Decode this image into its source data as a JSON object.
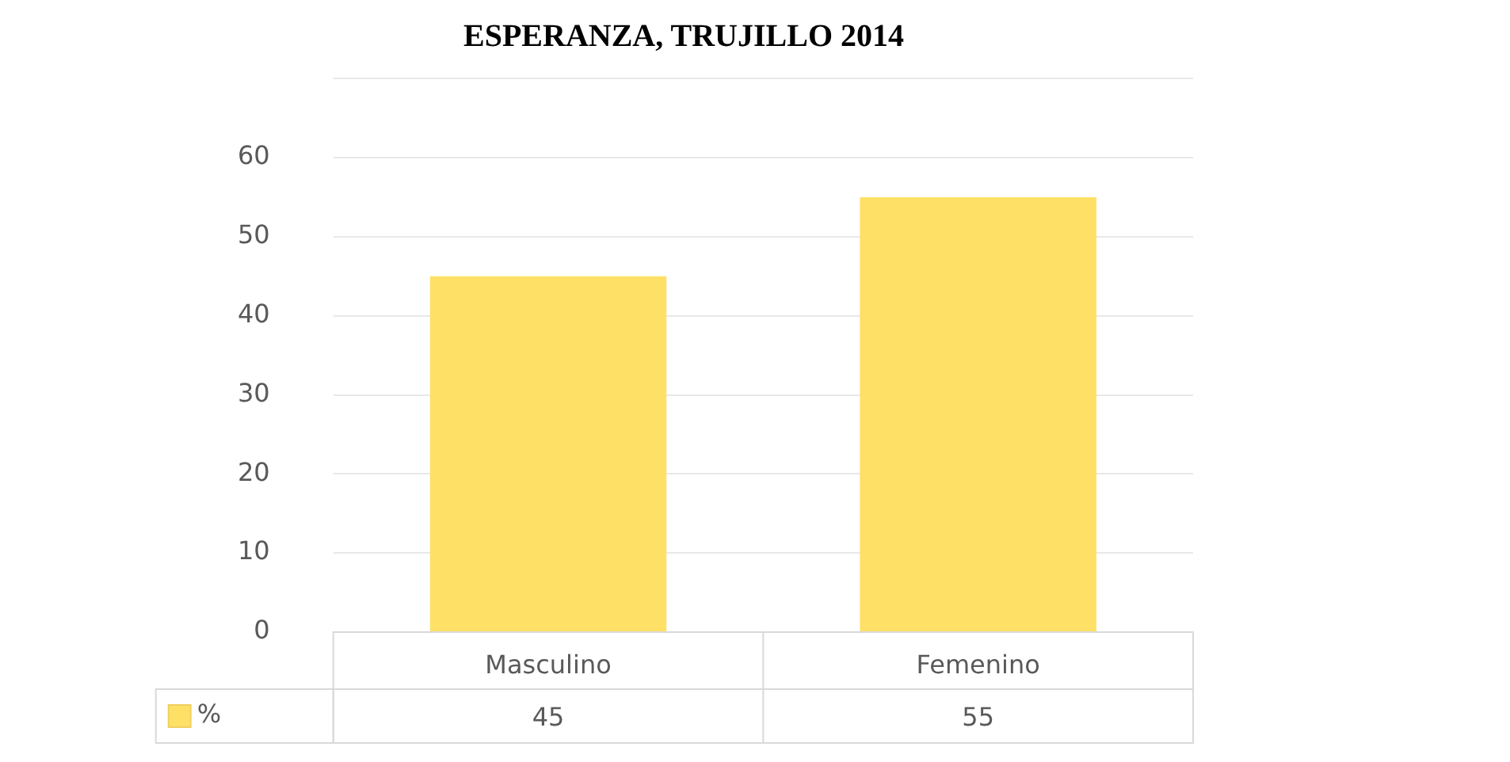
{
  "chart_data": {
    "type": "bar",
    "title": "ESPERANZA, TRUJILLO 2014",
    "categories": [
      "Masculino",
      "Femenino"
    ],
    "series": [
      {
        "name": "%",
        "color": "#ffe066",
        "values": [
          45,
          55
        ]
      }
    ],
    "ylim": [
      0,
      70
    ],
    "yticks": [
      0,
      10,
      20,
      30,
      40,
      50,
      60,
      {
        "value": 70,
        "label": null
      }
    ],
    "grid": "y",
    "legend": "bottom",
    "data_labels": true
  }
}
